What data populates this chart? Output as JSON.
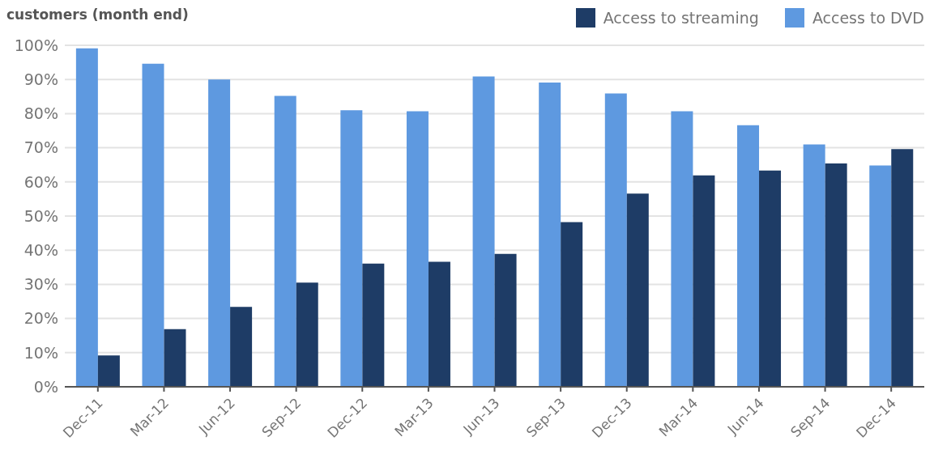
{
  "chart_data": {
    "type": "bar",
    "title": "customers (month end)",
    "categories": [
      "Dec-11",
      "Mar-12",
      "Jun-12",
      "Sep-12",
      "Dec-12",
      "Mar-13",
      "Jun-13",
      "Sep-13",
      "Dec-13",
      "Mar-14",
      "Jun-14",
      "Sep-14",
      "Dec-14"
    ],
    "series": [
      {
        "name": "Access to DVD",
        "color": "#5e99e0",
        "values": [
          99.1,
          94.6,
          90,
          85.2,
          81,
          80.7,
          90.9,
          89.1,
          85.9,
          80.7,
          76.6,
          71,
          64.8
        ]
      },
      {
        "name": "Access to streaming",
        "color": "#1e3c66",
        "values": [
          9.2,
          16.9,
          23.4,
          30.5,
          36.1,
          36.6,
          38.9,
          48.2,
          56.6,
          61.9,
          63.3,
          65.4,
          69.6
        ]
      }
    ],
    "ylim": [
      0,
      100
    ],
    "yticks": [
      {
        "value": 0,
        "label": "0%"
      },
      {
        "value": 10,
        "label": "10%"
      },
      {
        "value": 20,
        "label": "20%"
      },
      {
        "value": 30,
        "label": "30%"
      },
      {
        "value": 40,
        "label": "40%"
      },
      {
        "value": 50,
        "label": "50%"
      },
      {
        "value": 60,
        "label": "60%"
      },
      {
        "value": 70,
        "label": "70%"
      },
      {
        "value": 80,
        "label": "80%"
      },
      {
        "value": 90,
        "label": "90%"
      },
      {
        "value": 100,
        "label": "100%"
      }
    ],
    "grid": "y",
    "legend": "top right"
  }
}
